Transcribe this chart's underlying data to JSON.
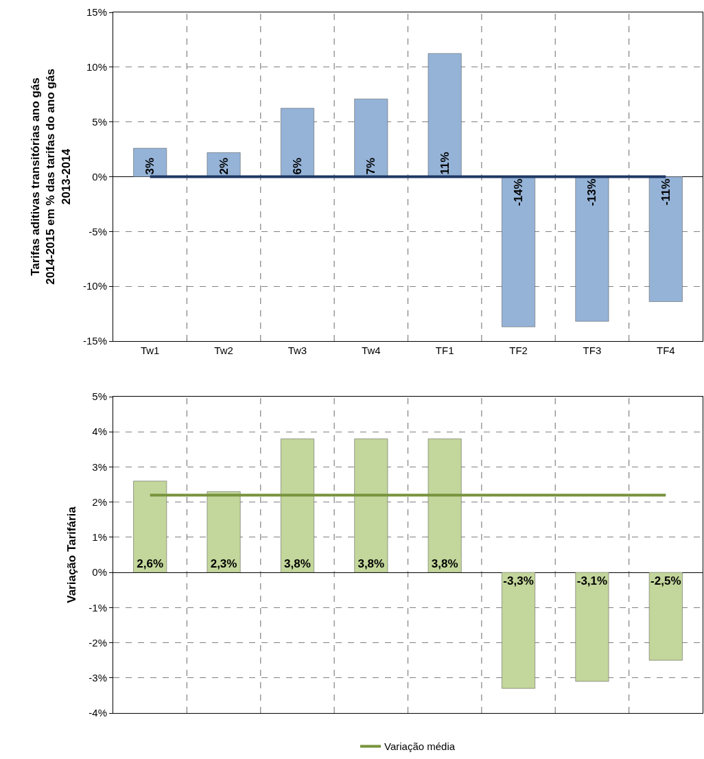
{
  "chart_data": [
    {
      "type": "bar",
      "ylabel": "Tarifas aditivas transitórias ano gás 2014-2015 em % das tarifas do ano gás 2013-2014",
      "categories": [
        "Tw1",
        "Tw2",
        "Tw3",
        "Tw4",
        "TF1",
        "TF2",
        "TF3",
        "TF4"
      ],
      "series": [
        {
          "color": "#95b3d7",
          "values": [
            2.6,
            2.2,
            6.25,
            7.1,
            11.25,
            -13.7,
            -13.2,
            -11.4
          ],
          "value_labels": [
            "3%",
            "2%",
            "6%",
            "7%",
            "11%",
            "-14%",
            "-13%",
            "-11%"
          ]
        },
        {
          "type": "line",
          "color": "#1f3864",
          "values": [
            0,
            0,
            0,
            0,
            0,
            0,
            0,
            0
          ]
        }
      ],
      "ylim": [
        -15,
        15
      ],
      "yticks": [
        {
          "value": -15,
          "label": "-15%"
        },
        {
          "value": -10,
          "label": "-10%"
        },
        {
          "value": -5,
          "label": "-5%"
        },
        {
          "value": 0,
          "label": "0%"
        },
        {
          "value": 5,
          "label": "5%"
        },
        {
          "value": 10,
          "label": "10%"
        },
        {
          "value": 15,
          "label": "15%"
        }
      ],
      "grid": true,
      "legend": false
    },
    {
      "type": "bar",
      "ylabel": "Variação Tarifária",
      "categories": [
        null,
        null,
        null,
        null,
        null,
        null,
        null,
        null
      ],
      "series": [
        {
          "color": "#c3d69b",
          "values": [
            2.6,
            2.3,
            3.8,
            3.8,
            3.8,
            -3.3,
            -3.1,
            -2.5
          ],
          "value_labels": [
            "2,6%",
            "2,3%",
            "3,8%",
            "3,8%",
            "3,8%",
            "-3,3%",
            "-3,1%",
            "-2,5%"
          ]
        },
        {
          "type": "line",
          "name": "Variação média",
          "color": "#77933c",
          "values": [
            2.2,
            2.2,
            2.2,
            2.2,
            2.2,
            2.2,
            2.2,
            2.2
          ]
        }
      ],
      "ylim": [
        -4,
        5
      ],
      "yticks": [
        {
          "value": -4,
          "label": "-4%"
        },
        {
          "value": -3,
          "label": "-3%"
        },
        {
          "value": -2,
          "label": "-2%"
        },
        {
          "value": -1,
          "label": "-1%"
        },
        {
          "value": 0,
          "label": "0%"
        },
        {
          "value": 1,
          "label": "1%"
        },
        {
          "value": 2,
          "label": "2%"
        },
        {
          "value": 3,
          "label": "3%"
        },
        {
          "value": 4,
          "label": "4%"
        },
        {
          "value": 5,
          "label": "5%"
        }
      ],
      "grid": true,
      "legend": "bottom",
      "tick_labels": "y"
    }
  ]
}
